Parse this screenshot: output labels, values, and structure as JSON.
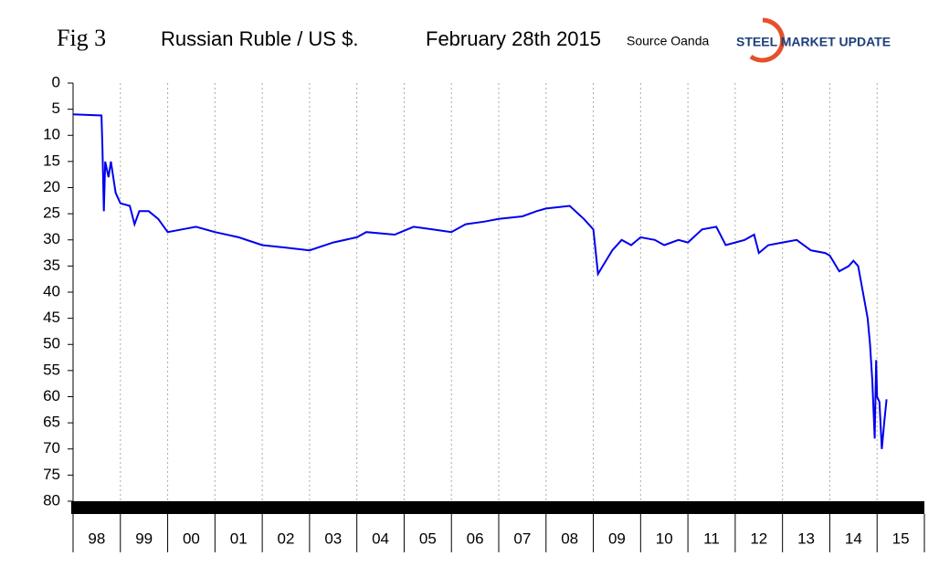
{
  "chart_data": {
    "type": "line",
    "figure_label": "Fig 3",
    "title": "Russian Ruble / US $.",
    "subtitle": "February 28th 2015",
    "source": "Source Oanda",
    "logo": "STEEL MARKET UPDATE",
    "ylim": [
      0,
      80
    ],
    "y_inverted": true,
    "yticks": [
      0,
      5,
      10,
      15,
      20,
      25,
      30,
      35,
      40,
      45,
      50,
      55,
      60,
      65,
      70,
      75,
      80
    ],
    "xlim": [
      1998,
      2016
    ],
    "xticks": [
      {
        "value": 1998,
        "label": "98"
      },
      {
        "value": 1999,
        "label": "99"
      },
      {
        "value": 2000,
        "label": "00"
      },
      {
        "value": 2001,
        "label": "01"
      },
      {
        "value": 2002,
        "label": "02"
      },
      {
        "value": 2003,
        "label": "03"
      },
      {
        "value": 2004,
        "label": "04"
      },
      {
        "value": 2005,
        "label": "05"
      },
      {
        "value": 2006,
        "label": "06"
      },
      {
        "value": 2007,
        "label": "07"
      },
      {
        "value": 2008,
        "label": "08"
      },
      {
        "value": 2009,
        "label": "09"
      },
      {
        "value": 2010,
        "label": "10"
      },
      {
        "value": 2011,
        "label": "11"
      },
      {
        "value": 2012,
        "label": "12"
      },
      {
        "value": 2013,
        "label": "13"
      },
      {
        "value": 2014,
        "label": "14"
      },
      {
        "value": 2015,
        "label": "15"
      }
    ],
    "grid": true,
    "x": [
      1998.0,
      1998.6,
      1998.62,
      1998.65,
      1998.68,
      1998.75,
      1998.8,
      1998.9,
      1999.0,
      1999.2,
      1999.3,
      1999.4,
      1999.6,
      1999.8,
      2000.0,
      2000.3,
      2000.6,
      2001.0,
      2001.5,
      2002.0,
      2002.5,
      2003.0,
      2003.5,
      2004.0,
      2004.2,
      2004.8,
      2005.2,
      2005.6,
      2006.0,
      2006.3,
      2006.7,
      2007.0,
      2007.5,
      2007.8,
      2008.0,
      2008.5,
      2008.8,
      2009.0,
      2009.1,
      2009.2,
      2009.4,
      2009.6,
      2009.8,
      2010.0,
      2010.3,
      2010.5,
      2010.8,
      2011.0,
      2011.3,
      2011.6,
      2011.8,
      2012.0,
      2012.2,
      2012.4,
      2012.5,
      2012.7,
      2013.0,
      2013.3,
      2013.6,
      2013.9,
      2014.0,
      2014.2,
      2014.4,
      2014.5,
      2014.6,
      2014.7,
      2014.8,
      2014.85,
      2014.9,
      2014.95,
      2014.98,
      2015.0,
      2015.05,
      2015.1,
      2015.15,
      2015.2
    ],
    "series": [
      {
        "color": "#0000ee",
        "values": [
          6,
          6.2,
          12,
          24.5,
          15,
          18,
          15,
          21,
          23,
          23.5,
          27,
          24.5,
          24.5,
          26,
          28.5,
          28,
          27.5,
          28.5,
          29.5,
          31,
          31.5,
          32,
          30.5,
          29.5,
          28.5,
          29,
          27.5,
          28,
          28.5,
          27,
          26.5,
          26,
          25.5,
          24.5,
          24,
          23.5,
          26,
          28,
          36.5,
          35,
          32,
          30,
          31,
          29.5,
          30,
          31,
          30,
          30.5,
          28,
          27.5,
          31,
          30.5,
          30,
          29,
          32.5,
          31,
          30.5,
          30,
          32,
          32.5,
          33,
          36,
          35,
          34,
          35,
          40,
          45,
          50,
          57,
          68,
          53,
          60,
          61,
          70,
          65,
          60.5
        ]
      }
    ]
  }
}
